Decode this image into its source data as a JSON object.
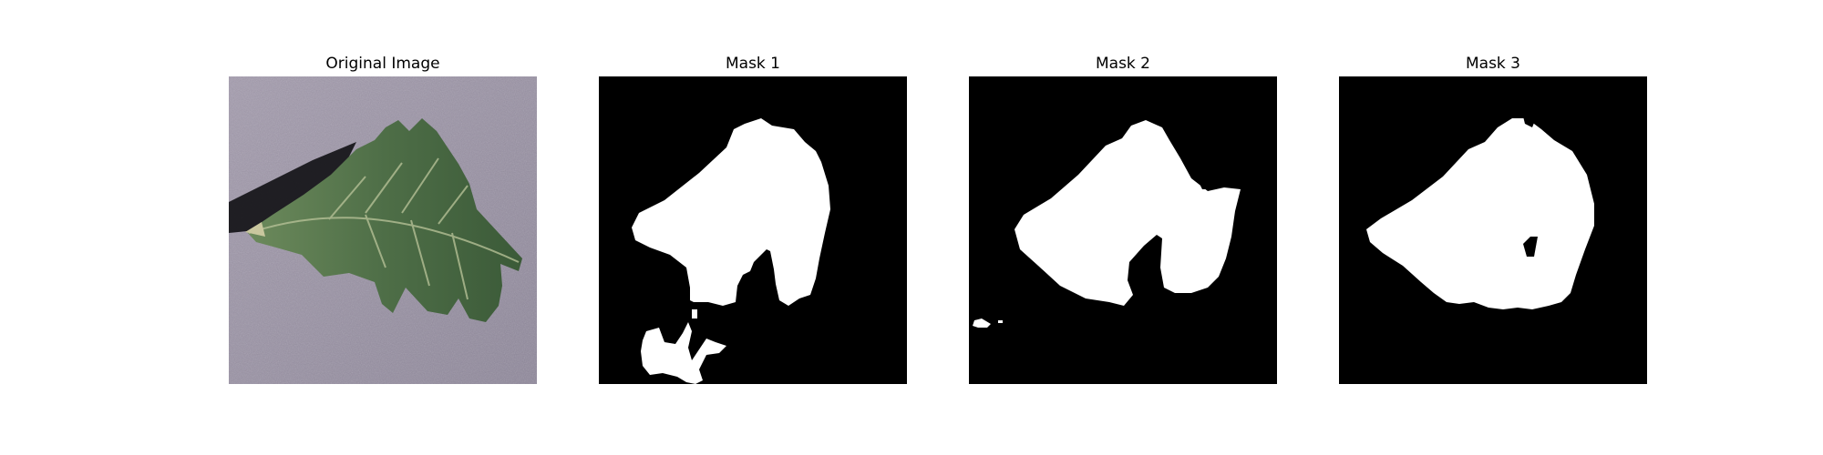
{
  "panels": [
    {
      "title": "Original Image",
      "kind": "photo"
    },
    {
      "title": "Mask 1",
      "kind": "mask"
    },
    {
      "title": "Mask 2",
      "kind": "mask"
    },
    {
      "title": "Mask 3",
      "kind": "mask"
    }
  ],
  "colors": {
    "mask_foreground": "#ffffff",
    "mask_background": "#000000",
    "photo_background": "#9a93a6",
    "leaf": "#4d6d45",
    "leaf_shadow": "#101013",
    "leaf_vein": "#b8c29a"
  }
}
